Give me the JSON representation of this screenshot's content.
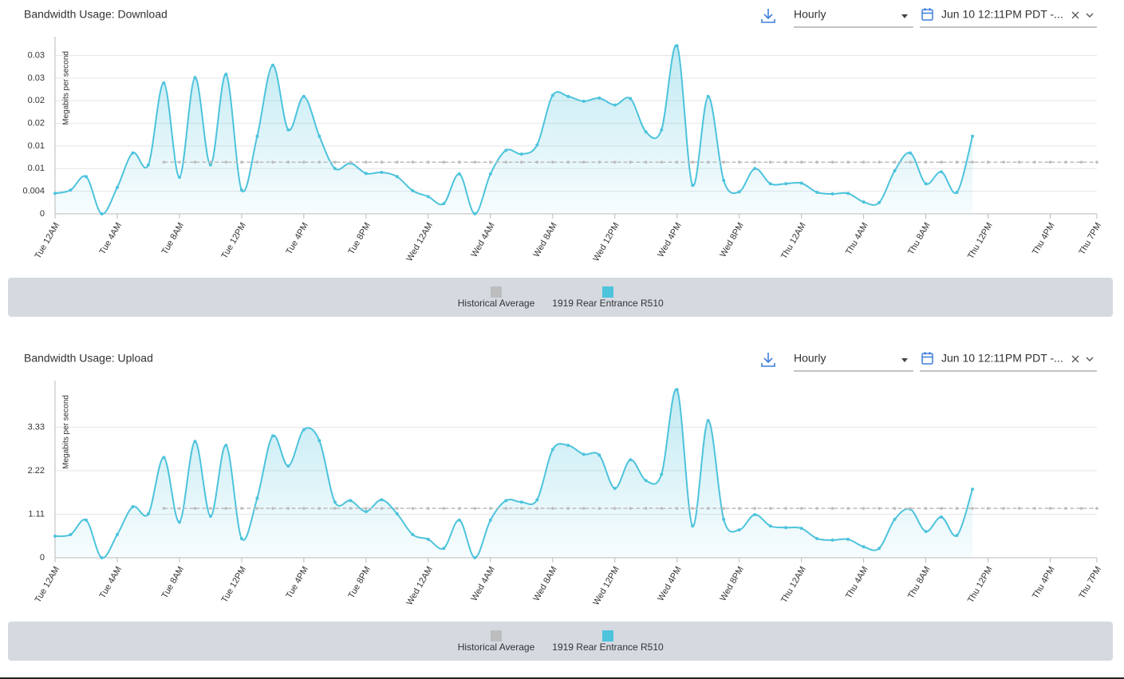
{
  "chart_data": [
    {
      "type": "line",
      "title": "Bandwidth Usage: Download",
      "interval": "Hourly",
      "date_range": "Jun 10 12:11PM PDT -...",
      "ylabel": "Megabits per second",
      "x": [
        0,
        1,
        2,
        3,
        4,
        5,
        6,
        7,
        8,
        9,
        10,
        11,
        12,
        13,
        14,
        15,
        16,
        17,
        18,
        19,
        20,
        21,
        22,
        23,
        24,
        25,
        26,
        27,
        28,
        29,
        30,
        31,
        32,
        33,
        34,
        35,
        36,
        37,
        38,
        39,
        40,
        41,
        42,
        43,
        44,
        45,
        46,
        47,
        48,
        49,
        50,
        51,
        52,
        53,
        54,
        55,
        56,
        57,
        58,
        59,
        60,
        61,
        62,
        63,
        64,
        65,
        66,
        67
      ],
      "xlim": [
        0,
        67
      ],
      "xticks": [
        {
          "value": 0,
          "label": "Tue 12AM"
        },
        {
          "value": 4,
          "label": "Tue 4AM"
        },
        {
          "value": 8,
          "label": "Tue 8AM"
        },
        {
          "value": 12,
          "label": "Tue 12PM"
        },
        {
          "value": 16,
          "label": "Tue 4PM"
        },
        {
          "value": 20,
          "label": "Tue 8PM"
        },
        {
          "value": 24,
          "label": "Wed 12AM"
        },
        {
          "value": 28,
          "label": "Wed 4AM"
        },
        {
          "value": 32,
          "label": "Wed 8AM"
        },
        {
          "value": 36,
          "label": "Wed 12PM"
        },
        {
          "value": 40,
          "label": "Wed 4PM"
        },
        {
          "value": 44,
          "label": "Wed 8PM"
        },
        {
          "value": 48,
          "label": "Thu 12AM"
        },
        {
          "value": 52,
          "label": "Thu 4AM"
        },
        {
          "value": 56,
          "label": "Thu 8AM"
        },
        {
          "value": 60,
          "label": "Thu 12PM"
        },
        {
          "value": 64,
          "label": "Thu 4PM"
        },
        {
          "value": 67,
          "label": "Thu 7PM"
        }
      ],
      "ylim": [
        0,
        0.032
      ],
      "yticks": [
        0,
        {
          "value": 0.0042,
          "label": "0.004"
        },
        {
          "value": 0.0084,
          "label": "0.01"
        },
        {
          "value": 0.0126,
          "label": "0.01"
        },
        {
          "value": 0.0168,
          "label": "0.02"
        },
        {
          "value": 0.021,
          "label": "0.02"
        },
        {
          "value": 0.0252,
          "label": "0.03"
        },
        {
          "value": 0.0294,
          "label": "0.03"
        }
      ],
      "grid": true,
      "series": [
        {
          "name": "Historical Average",
          "color": "#bdbdbd",
          "dashed": true,
          "values": [
            null,
            null,
            null,
            null,
            null,
            null,
            null,
            0.0096,
            0.0096,
            0.0096,
            0.0096,
            0.0096,
            0.0096,
            0.0096,
            0.0096,
            0.0096,
            0.0096,
            0.0096,
            0.0096,
            0.0096,
            0.0096,
            0.0096,
            0.0096,
            0.0096,
            0.0096,
            0.0096,
            0.0096,
            0.0096,
            0.0096,
            0.0096,
            0.0096,
            0.0096,
            0.0096,
            0.0096,
            0.0096,
            0.0096,
            0.0096,
            0.0096,
            0.0096,
            0.0096,
            0.0096,
            0.0096,
            0.0096,
            0.0096,
            0.0096,
            0.0096,
            0.0096,
            0.0096,
            0.0096,
            0.0096,
            0.0096,
            0.0096,
            0.0096,
            0.0096,
            0.0096,
            0.0096,
            0.0096,
            0.0096,
            0.0096,
            0.0096,
            0.0096,
            0.0096,
            0.0096,
            0.0096,
            0.0096,
            0.0096,
            0.0096,
            0.0096
          ]
        },
        {
          "name": "1919 Rear Entrance R510",
          "color": "#4dc3dc",
          "values": [
            0.0038,
            0.0044,
            0.0069,
            0,
            0.0049,
            0.0113,
            0.0091,
            0.0243,
            0.0068,
            0.0253,
            0.0091,
            0.0259,
            0.0044,
            0.0144,
            0.0276,
            0.0156,
            0.0218,
            0.0144,
            0.0084,
            0.0094,
            0.0075,
            0.0077,
            0.0069,
            0.0043,
            0.0032,
            0.0019,
            0.0074,
            0,
            0.0074,
            0.0118,
            0.0111,
            0.0128,
            0.022,
            0.0218,
            0.0209,
            0.0215,
            0.0202,
            0.0214,
            0.0152,
            0.0156,
            0.0312,
            0.0053,
            0.0218,
            0.0062,
            0.0041,
            0.0084,
            0.0056,
            0.0056,
            0.0057,
            0.004,
            0.0037,
            0.0038,
            0.0022,
            0.0021,
            0.008,
            0.0113,
            0.0056,
            0.0078,
            0.004,
            0.0144,
            null,
            null,
            null,
            null,
            null,
            null,
            null,
            null
          ]
        }
      ]
    },
    {
      "type": "line",
      "title": "Bandwidth Usage: Upload",
      "interval": "Hourly",
      "date_range": "Jun 10 12:11PM PDT -...",
      "ylabel": "Megabits per second",
      "x": [
        0,
        1,
        2,
        3,
        4,
        5,
        6,
        7,
        8,
        9,
        10,
        11,
        12,
        13,
        14,
        15,
        16,
        17,
        18,
        19,
        20,
        21,
        22,
        23,
        24,
        25,
        26,
        27,
        28,
        29,
        30,
        31,
        32,
        33,
        34,
        35,
        36,
        37,
        38,
        39,
        40,
        41,
        42,
        43,
        44,
        45,
        46,
        47,
        48,
        49,
        50,
        51,
        52,
        53,
        54,
        55,
        56,
        57,
        58,
        59,
        60,
        61,
        62,
        63,
        64,
        65,
        66,
        67
      ],
      "xlim": [
        0,
        67
      ],
      "xticks": [
        {
          "value": 0,
          "label": "Tue 12AM"
        },
        {
          "value": 4,
          "label": "Tue 4AM"
        },
        {
          "value": 8,
          "label": "Tue 8AM"
        },
        {
          "value": 12,
          "label": "Tue 12PM"
        },
        {
          "value": 16,
          "label": "Tue 4PM"
        },
        {
          "value": 20,
          "label": "Tue 8PM"
        },
        {
          "value": 24,
          "label": "Wed 12AM"
        },
        {
          "value": 28,
          "label": "Wed 4AM"
        },
        {
          "value": 32,
          "label": "Wed 8AM"
        },
        {
          "value": 36,
          "label": "Wed 12PM"
        },
        {
          "value": 40,
          "label": "Wed 4PM"
        },
        {
          "value": 44,
          "label": "Wed 8PM"
        },
        {
          "value": 48,
          "label": "Thu 12AM"
        },
        {
          "value": 52,
          "label": "Thu 4AM"
        },
        {
          "value": 56,
          "label": "Thu 8AM"
        },
        {
          "value": 60,
          "label": "Thu 12PM"
        },
        {
          "value": 64,
          "label": "Thu 4PM"
        },
        {
          "value": 67,
          "label": "Thu 7PM"
        }
      ],
      "ylim": [
        0,
        4.4
      ],
      "yticks": [
        0,
        1.11,
        2.22,
        3.33
      ],
      "grid": true,
      "series": [
        {
          "name": "Historical Average",
          "color": "#bdbdbd",
          "dashed": true,
          "values": [
            null,
            null,
            null,
            null,
            null,
            null,
            null,
            1.26,
            1.26,
            1.26,
            1.26,
            1.26,
            1.26,
            1.26,
            1.26,
            1.26,
            1.26,
            1.26,
            1.26,
            1.26,
            1.26,
            1.26,
            1.26,
            1.26,
            1.26,
            1.26,
            1.26,
            1.26,
            1.26,
            1.26,
            1.26,
            1.26,
            1.26,
            1.26,
            1.26,
            1.26,
            1.26,
            1.26,
            1.26,
            1.26,
            1.26,
            1.26,
            1.26,
            1.26,
            1.26,
            1.26,
            1.26,
            1.26,
            1.26,
            1.26,
            1.26,
            1.26,
            1.26,
            1.26,
            1.26,
            1.26,
            1.26,
            1.26,
            1.26,
            1.26,
            1.26,
            1.26,
            1.26,
            1.26,
            1.26,
            1.26,
            1.26,
            1.26
          ]
        },
        {
          "name": "1919 Rear Entrance R510",
          "color": "#4dc3dc",
          "values": [
            0.55,
            0.59,
            0.96,
            0,
            0.59,
            1.3,
            1.12,
            2.56,
            0.91,
            2.97,
            1.06,
            2.87,
            0.49,
            1.52,
            3.11,
            2.34,
            3.27,
            2.99,
            1.42,
            1.46,
            1.18,
            1.48,
            1.12,
            0.59,
            0.47,
            0.24,
            0.96,
            0,
            0.96,
            1.46,
            1.42,
            1.48,
            2.76,
            2.87,
            2.64,
            2.62,
            1.77,
            2.5,
            1.97,
            2.13,
            4.29,
            0.81,
            3.5,
            0.98,
            0.71,
            1.1,
            0.81,
            0.77,
            0.75,
            0.49,
            0.45,
            0.47,
            0.28,
            0.24,
            0.98,
            1.24,
            0.67,
            1.04,
            0.57,
            1.75,
            null,
            null,
            null,
            null,
            null,
            null,
            null,
            null
          ]
        }
      ]
    }
  ]
}
